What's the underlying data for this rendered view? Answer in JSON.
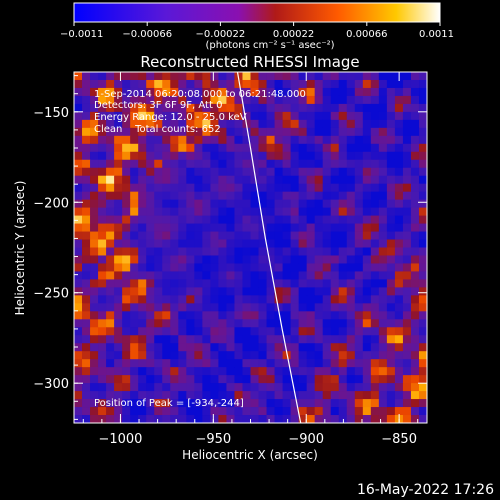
{
  "chart_data": {
    "type": "heatmap",
    "title": "Reconstructed RHESSI Image",
    "xlabel": "Heliocentric X (arcsec)",
    "ylabel": "Heliocentric Y (arcsec)",
    "xlim": [
      -1025,
      -835
    ],
    "ylim": [
      -322,
      -128
    ],
    "xticks": [
      -1000,
      -950,
      -900,
      -850
    ],
    "yticks": [
      -150,
      -200,
      -250,
      -300
    ],
    "xtick_labels": [
      "−1000",
      "−950",
      "−900",
      "−850"
    ],
    "ytick_labels": [
      "−150",
      "−200",
      "−250",
      "−300"
    ],
    "colorbar": {
      "range": [
        -0.0011,
        0.0011
      ],
      "ticks": [
        -0.0011,
        -0.00066,
        -0.00022,
        0.00022,
        0.00066,
        0.0011
      ],
      "tick_labels": [
        "−0.0011",
        "−0.00066",
        "−0.00022",
        "0.00022",
        "0.00066",
        "0.0011"
      ],
      "unit_label": "(photons cm⁻² s⁻¹ asec⁻²)"
    },
    "annotations": [
      "1-Sep-2014 06:20:08.000 to 06:21:48.000",
      "Detectors: 3F 6F 9F, Att 0",
      "Energy Range: 12.0 - 25.0 keV",
      "Clean    Total counts: 652"
    ],
    "peak_label": "Position of Peak = [-934,-244]",
    "peak_position": [
      -934,
      -244
    ],
    "limb_curve": [
      [
        -937,
        -128
      ],
      [
        -930,
        -170
      ],
      [
        -922,
        -220
      ],
      [
        -913,
        -270
      ],
      [
        -903,
        -322
      ]
    ],
    "colors": {
      "limb": "#ffffff",
      "background": "#000000"
    }
  },
  "footer": {
    "timestamp": "16-May-2022 17:26"
  }
}
